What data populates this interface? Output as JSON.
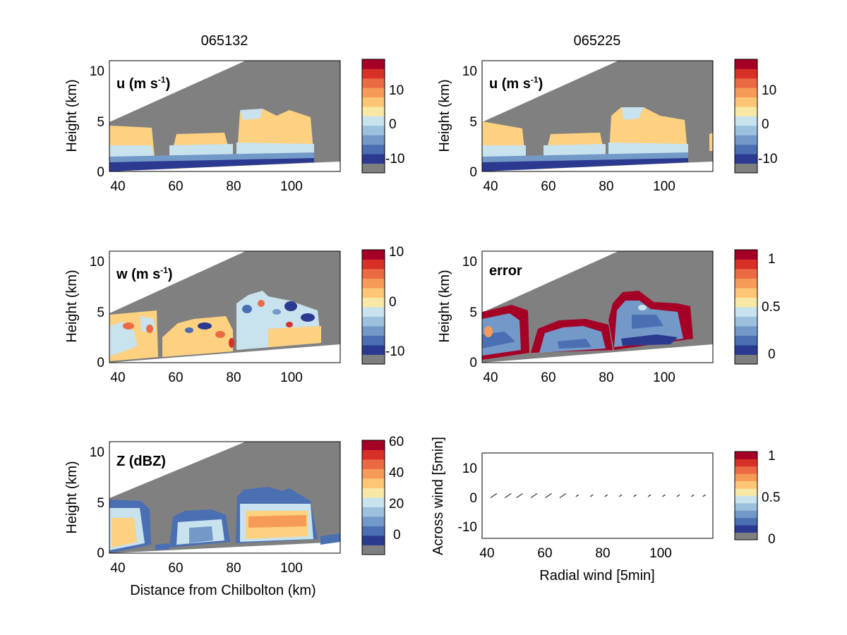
{
  "palette": {
    "colorbar": [
      "#7f7f7f",
      "#2b3a90",
      "#4a6fb3",
      "#7399c8",
      "#9cc0de",
      "#c8e2ee",
      "#f8e8a6",
      "#fdc574",
      "#f69b57",
      "#eb6a44",
      "#d73027",
      "#a50026"
    ],
    "masked": "#808080",
    "fill_light": "#c8e2ee",
    "fill_warm": "#fdd17f",
    "fill_red": "#a50026"
  },
  "titles": {
    "left": "065132",
    "right": "065225"
  },
  "panels": [
    {
      "id": "u-left",
      "label": "u (m s",
      "label_sup": "-1",
      "label_close": ")",
      "ylabel": "Height (km)",
      "xticks": [
        "40",
        "60",
        "80",
        "100"
      ],
      "yticks": [
        "0",
        "5",
        "10"
      ],
      "colorbar_ticks": [
        "10",
        "0",
        "-10"
      ]
    },
    {
      "id": "u-right",
      "label": "u (m s",
      "label_sup": "-1",
      "label_close": ")",
      "ylabel": "Height (km)",
      "xticks": [
        "40",
        "60",
        "80",
        "100"
      ],
      "yticks": [
        "0",
        "5",
        "10"
      ],
      "colorbar_ticks": [
        "10",
        "0",
        "-10"
      ]
    },
    {
      "id": "w-left",
      "label": "w (m s",
      "label_sup": "-1",
      "label_close": ")",
      "ylabel": "Height (km)",
      "xticks": [
        "40",
        "60",
        "80",
        "100"
      ],
      "yticks": [
        "0",
        "5",
        "10"
      ],
      "colorbar_ticks": [
        "10",
        "0",
        "-10"
      ]
    },
    {
      "id": "error-right",
      "label": "error",
      "label_sup": "",
      "label_close": "",
      "ylabel": "Height (km)",
      "xticks": [
        "40",
        "60",
        "80",
        "100"
      ],
      "yticks": [
        "0",
        "5",
        "10"
      ],
      "colorbar_ticks": [
        "1",
        "0.5",
        "0"
      ]
    },
    {
      "id": "z-left",
      "label": "Z (dBZ)",
      "label_sup": "",
      "label_close": "",
      "ylabel": "Height (km)",
      "xlabel": "Distance from Chilbolton (km)",
      "xticks": [
        "40",
        "60",
        "80",
        "100"
      ],
      "yticks": [
        "0",
        "5",
        "10"
      ],
      "colorbar_ticks": [
        "60",
        "40",
        "20",
        "0"
      ]
    },
    {
      "id": "wind-right",
      "label": "",
      "ylabel": "Across wind [5min]",
      "xlabel": "Radial wind [5min]",
      "xticks": [
        "40",
        "60",
        "80",
        "100"
      ],
      "yticks": [
        "10",
        "0",
        "-10"
      ],
      "colorbar_ticks": [
        "1",
        "0.5",
        "0"
      ]
    }
  ],
  "chart_data": [
    {
      "type": "heatmap",
      "title": "065132",
      "label": "u (m s-1)",
      "ylabel": "Height (km)",
      "xlim": [
        38,
        118
      ],
      "ylim": [
        0,
        11
      ],
      "clim": [
        -15,
        20
      ]
    },
    {
      "type": "heatmap",
      "title": "065225",
      "label": "u (m s-1)",
      "ylabel": "Height (km)",
      "xlim": [
        38,
        118
      ],
      "ylim": [
        0,
        11
      ],
      "clim": [
        -15,
        20
      ]
    },
    {
      "type": "heatmap",
      "label": "w (m s-1)",
      "ylabel": "Height (km)",
      "xlim": [
        38,
        118
      ],
      "ylim": [
        0,
        11
      ],
      "clim": [
        -13,
        10
      ]
    },
    {
      "type": "heatmap",
      "label": "error",
      "ylabel": "Height (km)",
      "xlim": [
        38,
        118
      ],
      "ylim": [
        0,
        11
      ],
      "clim": [
        -0.1,
        1.1
      ]
    },
    {
      "type": "heatmap",
      "label": "Z (dBZ)",
      "ylabel": "Height (km)",
      "xlabel": "Distance from Chilbolton (km)",
      "xlim": [
        38,
        118
      ],
      "ylim": [
        0,
        11
      ],
      "clim": [
        -15,
        60
      ]
    },
    {
      "type": "scatter",
      "xlabel": "Radial wind [5min]",
      "ylabel": "Across wind [5min]",
      "xlim": [
        38,
        118
      ],
      "ylim": [
        -15,
        15
      ],
      "x": [
        42,
        47,
        51,
        56,
        61,
        66,
        71,
        76,
        81,
        86,
        91,
        96,
        101,
        106,
        111,
        115
      ],
      "y": [
        0,
        0,
        0,
        0,
        0,
        0,
        0,
        0,
        0,
        0,
        0,
        0,
        0,
        0,
        0,
        0
      ]
    }
  ]
}
